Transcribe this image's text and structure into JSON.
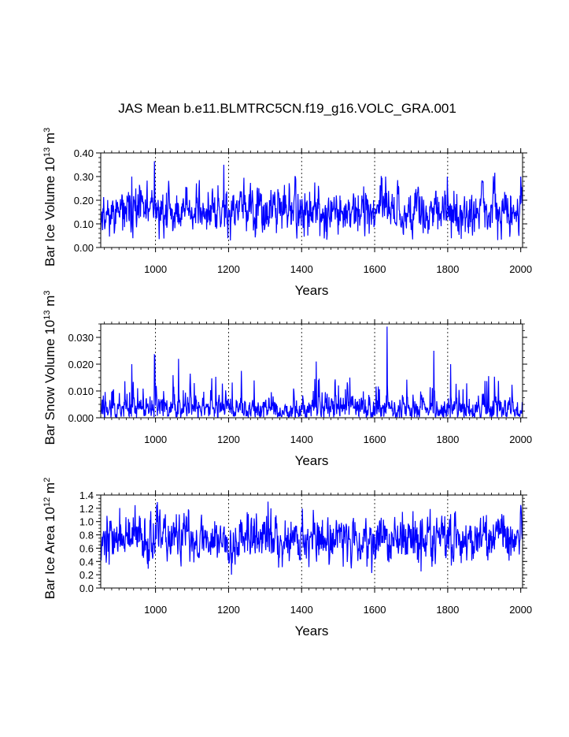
{
  "chart_data": {
    "type": "line",
    "title": "JAS Mean b.e11.BLMTRC5CN.f19_g16.VOLC_GRA.001",
    "series_color": "#0000ff",
    "panels": [
      {
        "id": "ice-volume",
        "ylabel_main": "Bar Ice Volume 10",
        "ylabel_exp": "13",
        "ylabel_unit": " m",
        "ylabel_unit_exp": "3",
        "xlabel": "Years",
        "xlim": [
          850,
          2005
        ],
        "ylim": [
          0.0,
          0.4
        ],
        "yticks": [
          0.0,
          0.1,
          0.2,
          0.3,
          0.4
        ],
        "ytick_labels": [
          "0.00",
          "0.10",
          "0.20",
          "0.30",
          "0.40"
        ],
        "ytick_minor": 0.02,
        "xticks": [
          1000,
          1200,
          1400,
          1600,
          1800,
          2000
        ],
        "xtick_labels": [
          "1000",
          "1200",
          "1400",
          "1600",
          "1800",
          "2000"
        ],
        "vlines": [
          1000,
          1200,
          1400,
          1600,
          1800
        ],
        "series_model": {
          "base": 0.15,
          "sd": 0.045,
          "spike_prob": 0.04,
          "spike_amp": 0.1,
          "min": 0.03,
          "seed": 11
        },
        "highlights": [
          [
            997,
            0.365
          ],
          [
            1187,
            0.35
          ],
          [
            935,
            0.3
          ],
          [
            1382,
            0.3
          ],
          [
            1630,
            0.3
          ],
          [
            1799,
            0.3
          ],
          [
            2000,
            0.3
          ],
          [
            1205,
            0.03
          ]
        ]
      },
      {
        "id": "snow-volume",
        "ylabel_main": "Bar Snow Volume 10",
        "ylabel_exp": "13",
        "ylabel_unit": " m",
        "ylabel_unit_exp": "3",
        "xlabel": "Years",
        "xlim": [
          850,
          2005
        ],
        "ylim": [
          0.0,
          0.035
        ],
        "yticks": [
          0.0,
          0.01,
          0.02,
          0.03
        ],
        "ytick_labels": [
          "0.000",
          "0.010",
          "0.020",
          "0.030"
        ],
        "ytick_minor": 0.0025,
        "xticks": [
          1000,
          1200,
          1400,
          1600,
          1800,
          2000
        ],
        "xtick_labels": [
          "1000",
          "1200",
          "1400",
          "1600",
          "1800",
          "2000"
        ],
        "vlines": [
          1000,
          1200,
          1400,
          1600,
          1800
        ],
        "series_model": {
          "base": 0.003,
          "sd": 0.002,
          "spike_prob": 0.09,
          "spike_amp": 0.011,
          "min": 0.0001,
          "seed": 23
        },
        "highlights": [
          [
            997,
            0.0235
          ],
          [
            1063,
            0.022
          ],
          [
            1634,
            0.034
          ],
          [
            1762,
            0.025
          ],
          [
            935,
            0.02
          ],
          [
            1440,
            0.021
          ],
          [
            1808,
            0.02
          ]
        ]
      },
      {
        "id": "ice-area",
        "ylabel_main": "Bar Ice Area 10",
        "ylabel_exp": "12",
        "ylabel_unit": " m",
        "ylabel_unit_exp": "2",
        "xlabel": "Years",
        "xlim": [
          850,
          2005
        ],
        "ylim": [
          0.0,
          1.4
        ],
        "yticks": [
          0.0,
          0.2,
          0.4,
          0.6,
          0.8,
          1.0,
          1.2,
          1.4
        ],
        "ytick_labels": [
          "0.0",
          "0.2",
          "0.4",
          "0.6",
          "0.8",
          "1.0",
          "1.2",
          "1.4"
        ],
        "ytick_minor": 0.05,
        "xticks": [
          1000,
          1200,
          1400,
          1600,
          1800,
          2000
        ],
        "xtick_labels": [
          "1000",
          "1200",
          "1400",
          "1600",
          "1800",
          "2000"
        ],
        "vlines": [
          1000,
          1200,
          1400,
          1600,
          1800
        ],
        "series_model": {
          "base": 0.75,
          "sd": 0.17,
          "spike_prob": 0.0,
          "spike_amp": 0.0,
          "min": 0.2,
          "seed": 37
        },
        "highlights": [
          [
            1308,
            1.3
          ],
          [
            1208,
            0.2
          ],
          [
            1727,
            0.25
          ],
          [
            1003,
            1.25
          ],
          [
            2000,
            1.25
          ]
        ]
      }
    ]
  }
}
